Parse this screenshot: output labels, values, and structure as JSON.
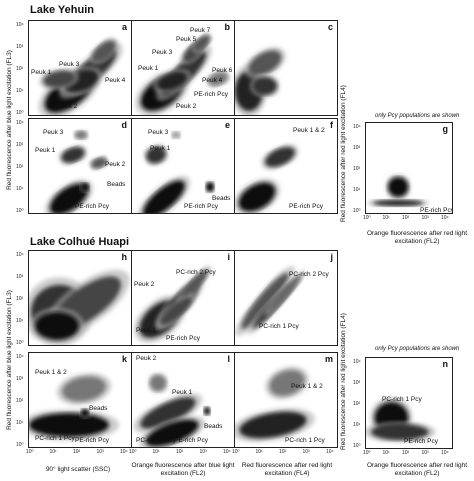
{
  "sections": [
    {
      "title": "Lake Yehuin"
    },
    {
      "title": "Lake Colhué Huapi"
    }
  ],
  "note": "only Pcy populations are shown",
  "ylabels": {
    "fl3": "Red fluorescence after blue light excitation (FL3)",
    "fl4": "Red fluorescence after red light excitation (FL4)"
  },
  "xlabels": {
    "ssc": "90° light  scatter (SSC)",
    "fl2_blue": "Orange fluorescence after blue light excitation (FL2)",
    "fl4": "Red fluorescence after red light excitation (FL4)",
    "fl2_red": "Orange fluorescence after red light excitation (FL2)"
  },
  "ticks": {
    "y": [
      "10⁴",
      "10³",
      "10²",
      "10¹",
      "10⁰"
    ],
    "x": [
      "10⁰",
      "10¹",
      "10²",
      "10³",
      "10⁴"
    ]
  },
  "panels": {
    "a": {
      "letter": "a",
      "labels": [
        "Peuk 3",
        "Peuk 1",
        "Peuk 4",
        "Peuk 2"
      ]
    },
    "b": {
      "letter": "b",
      "labels": [
        "Peuk 7",
        "Peuk 5",
        "Peuk 3",
        "Peuk 1",
        "Peuk 6",
        "Peuk 4",
        "Peuk 2",
        "PE-rich Pcy"
      ]
    },
    "c": {
      "letter": "c",
      "labels": []
    },
    "d": {
      "letter": "d",
      "labels": [
        "Peuk 3",
        "Peuk 1",
        "Peuk 2",
        "Beads",
        "PE-rich Pcy"
      ]
    },
    "e": {
      "letter": "e",
      "labels": [
        "Peuk 3",
        "Peuk 1",
        "Beads",
        "PE-rich Pcy"
      ]
    },
    "f": {
      "letter": "f",
      "labels": [
        "Peuk 1 & 2",
        "PE-rich Pcy"
      ]
    },
    "g": {
      "letter": "g",
      "labels": [
        "PE-rich Pcy"
      ]
    },
    "h": {
      "letter": "h",
      "labels": []
    },
    "i": {
      "letter": "i",
      "labels": [
        "PC-rich 2 Pcy",
        "Peuk 2",
        "Peuk 1",
        "PE-rich Pcy"
      ]
    },
    "j": {
      "letter": "j",
      "labels": [
        "PC-rich 2 Pcy",
        "PC-rich 1 Pcy"
      ]
    },
    "k": {
      "letter": "k",
      "labels": [
        "Peuk 1 & 2",
        "Beads",
        "PC-rich 1 Pcy",
        "PE-rich Pcy"
      ]
    },
    "l": {
      "letter": "l",
      "labels": [
        "Peuk 2",
        "Peuk 1",
        "PE-rich Pcy",
        "PC-rich 1 Pcy",
        "Beads"
      ]
    },
    "m": {
      "letter": "m",
      "labels": [
        "Peuk 1 & 2",
        "PC-rich 1 Pcy"
      ]
    },
    "n": {
      "letter": "n",
      "labels": [
        "PC-rich 1 Pcy",
        "PE-rich Pcy"
      ]
    }
  }
}
